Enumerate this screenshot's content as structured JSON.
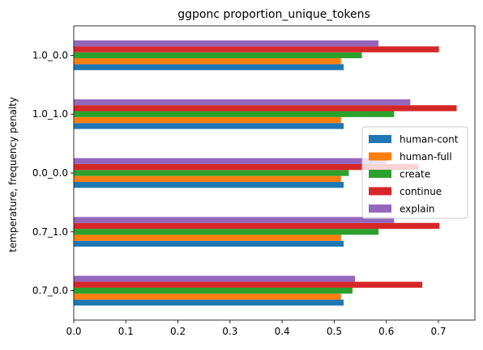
{
  "chart_data": {
    "type": "bar",
    "orientation": "horizontal",
    "title": "ggponc proportion_unique_tokens",
    "xlabel": "",
    "ylabel": "temperature, frequency penalty",
    "categories": [
      "0.7_0.0",
      "0.7_1.0",
      "0.0_0.0",
      "1.0_1.0",
      "1.0_0.0"
    ],
    "xlim": [
      0,
      0.77
    ],
    "xticks": [
      "0.0",
      "0.1",
      "0.2",
      "0.3",
      "0.4",
      "0.5",
      "0.6",
      "0.7"
    ],
    "legend_position": "center-right",
    "series": [
      {
        "name": "human-cont",
        "color": "#1f77b4",
        "values": [
          0.518,
          0.518,
          0.518,
          0.518,
          0.518
        ]
      },
      {
        "name": "human-full",
        "color": "#ff7f0e",
        "values": [
          0.513,
          0.513,
          0.513,
          0.513,
          0.513
        ]
      },
      {
        "name": "create",
        "color": "#2ca02c",
        "values": [
          0.535,
          0.585,
          0.528,
          0.615,
          0.553
        ]
      },
      {
        "name": "continue",
        "color": "#d62728",
        "values": [
          0.669,
          0.702,
          0.662,
          0.735,
          0.701
        ]
      },
      {
        "name": "explain",
        "color": "#9467bd",
        "values": [
          0.54,
          0.615,
          0.6,
          0.646,
          0.585
        ]
      }
    ]
  }
}
